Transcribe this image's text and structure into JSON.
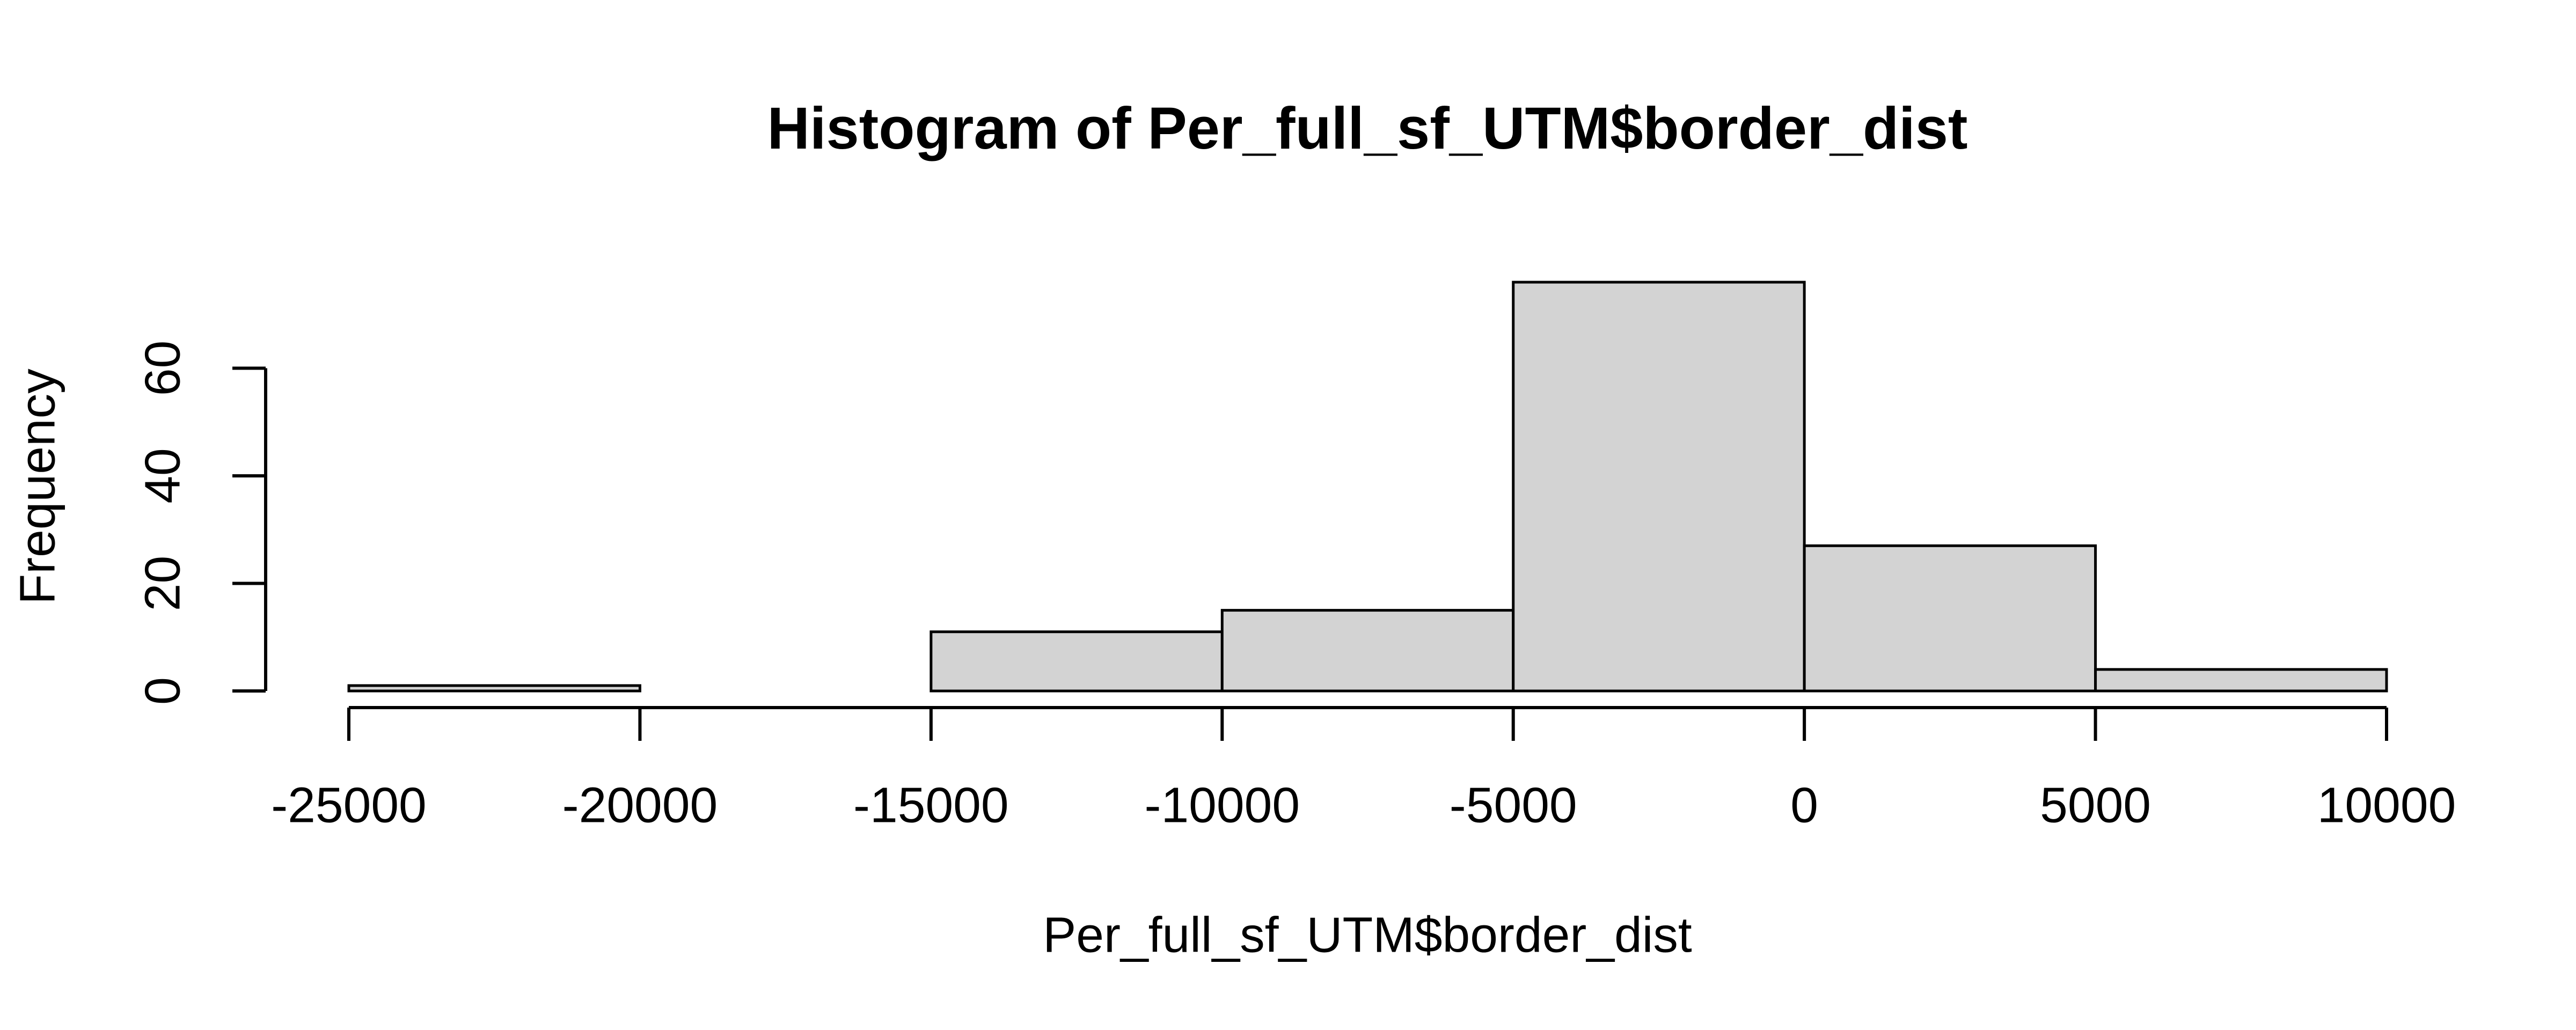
{
  "chart_data": {
    "type": "histogram",
    "title": "Histogram of Per_full_sf_UTM$border_dist",
    "xlabel": "Per_full_sf_UTM$border_dist",
    "ylabel": "Frequency",
    "bins": [
      -25000,
      -20000,
      -15000,
      -10000,
      -5000,
      0,
      5000,
      10000
    ],
    "values": [
      1,
      0,
      11,
      15,
      76,
      27,
      4
    ],
    "color": "#d3d3d3",
    "xlim": [
      -25000,
      10000
    ],
    "xticks": [
      -25000,
      -20000,
      -15000,
      -10000,
      -5000,
      0,
      5000,
      10000
    ],
    "ylim": [
      0,
      76
    ],
    "yticks": [
      0,
      20,
      40,
      60
    ]
  }
}
